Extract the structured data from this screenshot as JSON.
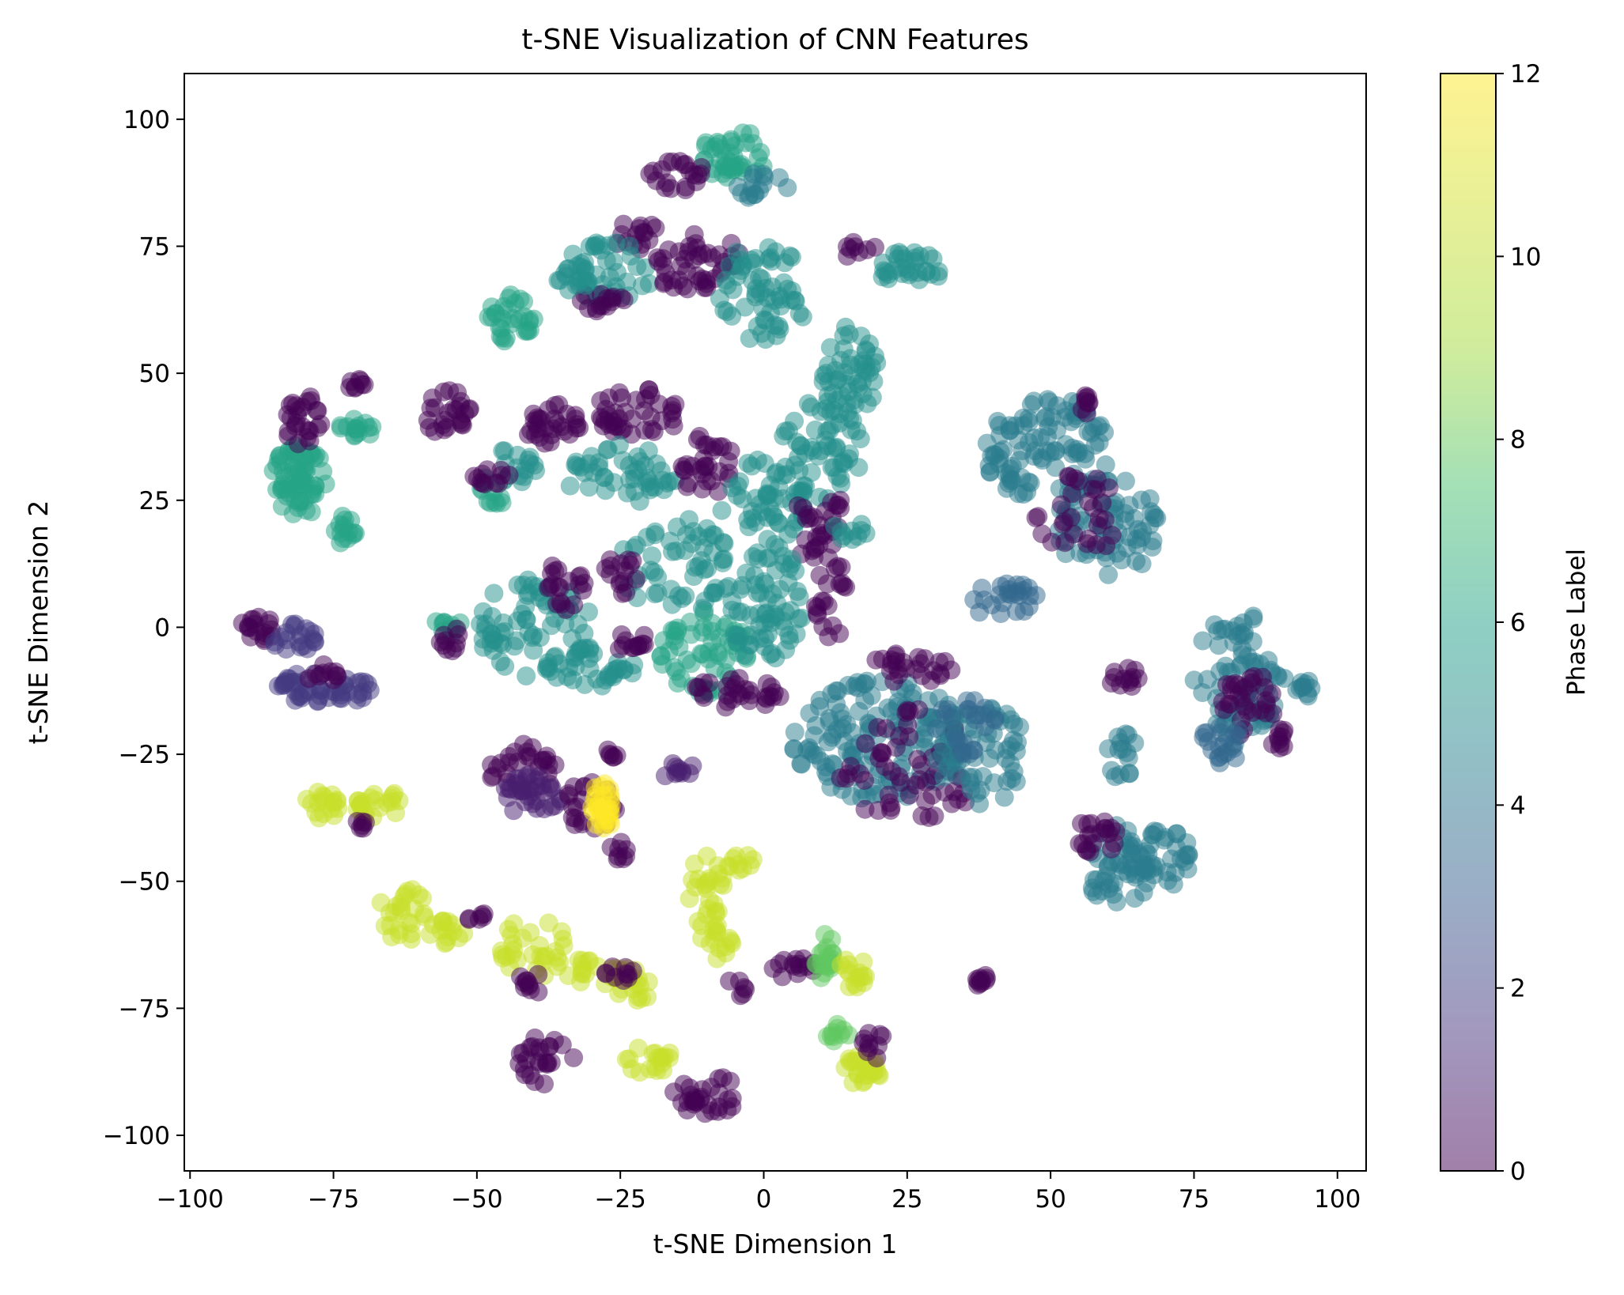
{
  "chart_data": {
    "type": "scatter",
    "title": "t-SNE Visualization of CNN Features",
    "xlabel": "t-SNE Dimension 1",
    "ylabel": "t-SNE Dimension 2",
    "xlim": [
      -101,
      105
    ],
    "ylim": [
      -107,
      109
    ],
    "xticks": [
      -100,
      -75,
      -50,
      -25,
      0,
      25,
      50,
      75,
      100
    ],
    "yticks": [
      -100,
      -75,
      -50,
      -25,
      0,
      25,
      50,
      75,
      100
    ],
    "xtick_labels": [
      "−100",
      "−75",
      "−50",
      "−25",
      "0",
      "25",
      "50",
      "75",
      "100"
    ],
    "ytick_labels": [
      "−100",
      "−75",
      "−50",
      "−25",
      "0",
      "25",
      "50",
      "75",
      "100"
    ],
    "grid": false,
    "colorbar": {
      "label": "Phase Label",
      "range": [
        0,
        12
      ],
      "ticks": [
        0,
        2,
        4,
        6,
        8,
        10,
        12
      ],
      "tick_labels": [
        "0",
        "2",
        "4",
        "6",
        "8",
        "10",
        "12"
      ],
      "colormap": "viridis"
    },
    "point_alpha": 0.5,
    "clusters": [
      {
        "label": 7,
        "cx": -5,
        "cy": 93,
        "rx": 6,
        "ry": 5,
        "n": 40
      },
      {
        "label": 0,
        "cx": -15,
        "cy": 89,
        "rx": 5,
        "ry": 3,
        "n": 20
      },
      {
        "label": 5,
        "cx": 0,
        "cy": 87,
        "rx": 5,
        "ry": 3,
        "n": 15
      },
      {
        "label": 0,
        "cx": -22,
        "cy": 77,
        "rx": 4,
        "ry": 3,
        "n": 15
      },
      {
        "label": 6,
        "cx": -27,
        "cy": 70,
        "rx": 8,
        "ry": 6,
        "n": 40
      },
      {
        "label": 0,
        "cx": -12,
        "cy": 72,
        "rx": 8,
        "ry": 6,
        "n": 45
      },
      {
        "label": 0,
        "cx": -28,
        "cy": 64,
        "rx": 4,
        "ry": 3,
        "n": 15
      },
      {
        "label": 6,
        "cx": 0,
        "cy": 66,
        "rx": 8,
        "ry": 10,
        "n": 60
      },
      {
        "label": 0,
        "cx": 17,
        "cy": 74,
        "rx": 3,
        "ry": 2,
        "n": 8
      },
      {
        "label": 6,
        "cx": 25,
        "cy": 71,
        "rx": 7,
        "ry": 3,
        "n": 30
      },
      {
        "label": 7,
        "cx": -44,
        "cy": 61,
        "rx": 4,
        "ry": 5,
        "n": 30
      },
      {
        "label": 6,
        "cx": -33,
        "cy": 69,
        "rx": 3,
        "ry": 3,
        "n": 15
      },
      {
        "label": 6,
        "cx": 15,
        "cy": 50,
        "rx": 5,
        "ry": 10,
        "n": 50
      },
      {
        "label": 6,
        "cx": 10,
        "cy": 35,
        "rx": 8,
        "ry": 10,
        "n": 55
      },
      {
        "label": 0,
        "cx": -37,
        "cy": 40,
        "rx": 5,
        "ry": 4,
        "n": 30
      },
      {
        "label": 0,
        "cx": -22,
        "cy": 42,
        "rx": 8,
        "ry": 5,
        "n": 40
      },
      {
        "label": 0,
        "cx": -55,
        "cy": 42,
        "rx": 4,
        "ry": 5,
        "n": 25
      },
      {
        "label": 6,
        "cx": -25,
        "cy": 30,
        "rx": 10,
        "ry": 6,
        "n": 45
      },
      {
        "label": 0,
        "cx": -10,
        "cy": 32,
        "rx": 5,
        "ry": 6,
        "n": 30
      },
      {
        "label": 6,
        "cx": 0,
        "cy": 25,
        "rx": 8,
        "ry": 8,
        "n": 50
      },
      {
        "label": 0,
        "cx": 10,
        "cy": 20,
        "rx": 5,
        "ry": 8,
        "n": 30
      },
      {
        "label": 7,
        "cx": -47,
        "cy": 27,
        "rx": 3,
        "ry": 3,
        "n": 12
      },
      {
        "label": 6,
        "cx": -43,
        "cy": 32,
        "rx": 4,
        "ry": 4,
        "n": 15
      },
      {
        "label": 0,
        "cx": -48,
        "cy": 30,
        "rx": 4,
        "ry": 2,
        "n": 12
      },
      {
        "label": 7,
        "cx": -81,
        "cy": 29,
        "rx": 5,
        "ry": 7,
        "n": 70
      },
      {
        "label": 0,
        "cx": -81,
        "cy": 41,
        "rx": 4,
        "ry": 5,
        "n": 25
      },
      {
        "label": 7,
        "cx": -71,
        "cy": 39,
        "rx": 3,
        "ry": 2,
        "n": 15
      },
      {
        "label": 0,
        "cx": -71,
        "cy": 48,
        "rx": 2,
        "ry": 1,
        "n": 8
      },
      {
        "label": 7,
        "cx": -73,
        "cy": 19,
        "rx": 2,
        "ry": 3,
        "n": 15
      },
      {
        "label": 6,
        "cx": -40,
        "cy": 0,
        "rx": 10,
        "ry": 10,
        "n": 70
      },
      {
        "label": 0,
        "cx": -35,
        "cy": 8,
        "rx": 4,
        "ry": 5,
        "n": 20
      },
      {
        "label": 6,
        "cx": -15,
        "cy": 12,
        "rx": 10,
        "ry": 10,
        "n": 55
      },
      {
        "label": 0,
        "cx": -25,
        "cy": 10,
        "rx": 3,
        "ry": 5,
        "n": 15
      },
      {
        "label": 7,
        "cx": -10,
        "cy": -5,
        "rx": 8,
        "ry": 8,
        "n": 60
      },
      {
        "label": 6,
        "cx": 0,
        "cy": 5,
        "rx": 7,
        "ry": 12,
        "n": 70
      },
      {
        "label": 0,
        "cx": -5,
        "cy": -13,
        "rx": 8,
        "ry": 3,
        "n": 30
      },
      {
        "label": 0,
        "cx": 12,
        "cy": 5,
        "rx": 3,
        "ry": 8,
        "n": 20
      },
      {
        "label": 6,
        "cx": -30,
        "cy": -8,
        "rx": 8,
        "ry": 4,
        "n": 30
      },
      {
        "label": 0,
        "cx": -23,
        "cy": -3,
        "rx": 3,
        "ry": 3,
        "n": 12
      },
      {
        "label": 7,
        "cx": -55,
        "cy": 0,
        "rx": 3,
        "ry": 2,
        "n": 10
      },
      {
        "label": 0,
        "cx": -55,
        "cy": -2,
        "rx": 2,
        "ry": 3,
        "n": 10
      },
      {
        "label": 0,
        "cx": -88,
        "cy": 0,
        "rx": 3,
        "ry": 3,
        "n": 18
      },
      {
        "label": 2,
        "cx": -82,
        "cy": -2,
        "rx": 4,
        "ry": 3,
        "n": 20
      },
      {
        "label": 2,
        "cx": -79,
        "cy": -12,
        "rx": 7,
        "ry": 3,
        "n": 35
      },
      {
        "label": 2,
        "cx": -72,
        "cy": -13,
        "rx": 4,
        "ry": 3,
        "n": 15
      },
      {
        "label": 0,
        "cx": -77,
        "cy": -9,
        "rx": 3,
        "ry": 2,
        "n": 10
      },
      {
        "label": 6,
        "cx": 15,
        "cy": 19,
        "rx": 3,
        "ry": 2,
        "n": 10
      },
      {
        "label": 5,
        "cx": 50,
        "cy": 35,
        "rx": 12,
        "ry": 10,
        "n": 100
      },
      {
        "label": 5,
        "cx": 60,
        "cy": 20,
        "rx": 9,
        "ry": 10,
        "n": 70
      },
      {
        "label": 0,
        "cx": 55,
        "cy": 22,
        "rx": 8,
        "ry": 8,
        "n": 30
      },
      {
        "label": 4,
        "cx": 42,
        "cy": 5,
        "rx": 6,
        "ry": 4,
        "n": 25
      },
      {
        "label": 0,
        "cx": 57,
        "cy": 44,
        "rx": 2,
        "ry": 2,
        "n": 8
      },
      {
        "label": 5,
        "cx": 20,
        "cy": -22,
        "rx": 15,
        "ry": 12,
        "n": 140
      },
      {
        "label": 0,
        "cx": 25,
        "cy": -28,
        "rx": 12,
        "ry": 12,
        "n": 60
      },
      {
        "label": 5,
        "cx": 38,
        "cy": -25,
        "rx": 8,
        "ry": 10,
        "n": 60
      },
      {
        "label": 0,
        "cx": 25,
        "cy": -8,
        "rx": 8,
        "ry": 3,
        "n": 25
      },
      {
        "label": 4,
        "cx": 35,
        "cy": -20,
        "rx": 6,
        "ry": 6,
        "n": 25
      },
      {
        "label": 5,
        "cx": 62,
        "cy": -47,
        "rx": 6,
        "ry": 8,
        "n": 50
      },
      {
        "label": 0,
        "cx": 58,
        "cy": -40,
        "rx": 4,
        "ry": 5,
        "n": 20
      },
      {
        "label": 5,
        "cx": 70,
        "cy": -45,
        "rx": 5,
        "ry": 6,
        "n": 30
      },
      {
        "label": 5,
        "cx": 62,
        "cy": -25,
        "rx": 3,
        "ry": 5,
        "n": 15
      },
      {
        "label": 0,
        "cx": 63,
        "cy": -10,
        "rx": 3,
        "ry": 2,
        "n": 12
      },
      {
        "label": 5,
        "cx": 83,
        "cy": -10,
        "rx": 8,
        "ry": 13,
        "n": 80
      },
      {
        "label": 0,
        "cx": 84,
        "cy": -15,
        "rx": 5,
        "ry": 7,
        "n": 30
      },
      {
        "label": 5,
        "cx": 94,
        "cy": -12,
        "rx": 2,
        "ry": 2,
        "n": 10
      },
      {
        "label": 4,
        "cx": 80,
        "cy": -23,
        "rx": 4,
        "ry": 4,
        "n": 20
      },
      {
        "label": 0,
        "cx": 90,
        "cy": -22,
        "rx": 2,
        "ry": 2,
        "n": 10
      },
      {
        "label": 0,
        "cx": -42,
        "cy": -28,
        "rx": 6,
        "ry": 5,
        "n": 30
      },
      {
        "label": 1,
        "cx": -40,
        "cy": -33,
        "rx": 6,
        "ry": 4,
        "n": 30
      },
      {
        "label": 0,
        "cx": -30,
        "cy": -35,
        "rx": 5,
        "ry": 5,
        "n": 25
      },
      {
        "label": 12,
        "cx": -28,
        "cy": -35,
        "rx": 2,
        "ry": 5,
        "n": 30
      },
      {
        "label": 0,
        "cx": -25,
        "cy": -44,
        "rx": 2,
        "ry": 2,
        "n": 8
      },
      {
        "label": 1,
        "cx": -15,
        "cy": -28,
        "rx": 3,
        "ry": 2,
        "n": 10
      },
      {
        "label": 0,
        "cx": -27,
        "cy": -25,
        "rx": 2,
        "ry": 1,
        "n": 6
      },
      {
        "label": 11,
        "cx": -77,
        "cy": -35,
        "rx": 3,
        "ry": 3,
        "n": 18
      },
      {
        "label": 11,
        "cx": -67,
        "cy": -35,
        "rx": 4,
        "ry": 3,
        "n": 22
      },
      {
        "label": 0,
        "cx": -71,
        "cy": -39,
        "rx": 2,
        "ry": 1,
        "n": 6
      },
      {
        "label": 11,
        "cx": -63,
        "cy": -56,
        "rx": 4,
        "ry": 6,
        "n": 25
      },
      {
        "label": 11,
        "cx": -55,
        "cy": -60,
        "rx": 4,
        "ry": 3,
        "n": 15
      },
      {
        "label": 11,
        "cx": -40,
        "cy": -63,
        "rx": 6,
        "ry": 6,
        "n": 30
      },
      {
        "label": 11,
        "cx": -30,
        "cy": -68,
        "rx": 5,
        "ry": 3,
        "n": 20
      },
      {
        "label": 11,
        "cx": -22,
        "cy": -70,
        "rx": 4,
        "ry": 4,
        "n": 18
      },
      {
        "label": 0,
        "cx": -50,
        "cy": -57,
        "rx": 2,
        "ry": 1,
        "n": 6
      },
      {
        "label": 0,
        "cx": -40,
        "cy": -70,
        "rx": 3,
        "ry": 2,
        "n": 10
      },
      {
        "label": 0,
        "cx": -25,
        "cy": -68,
        "rx": 3,
        "ry": 2,
        "n": 10
      },
      {
        "label": 11,
        "cx": -10,
        "cy": -52,
        "rx": 3,
        "ry": 8,
        "n": 25
      },
      {
        "label": 11,
        "cx": -8,
        "cy": -62,
        "rx": 3,
        "ry": 4,
        "n": 15
      },
      {
        "label": 11,
        "cx": -4,
        "cy": -46,
        "rx": 3,
        "ry": 2,
        "n": 10
      },
      {
        "label": 11,
        "cx": -20,
        "cy": -85,
        "rx": 4,
        "ry": 3,
        "n": 18
      },
      {
        "label": 0,
        "cx": -38,
        "cy": -85,
        "rx": 5,
        "ry": 5,
        "n": 25
      },
      {
        "label": 0,
        "cx": -10,
        "cy": -92,
        "rx": 6,
        "ry": 4,
        "n": 30
      },
      {
        "label": 0,
        "cx": -5,
        "cy": -71,
        "rx": 2,
        "ry": 2,
        "n": 6
      },
      {
        "label": 0,
        "cx": 5,
        "cy": -67,
        "rx": 5,
        "ry": 2,
        "n": 15
      },
      {
        "label": 9,
        "cx": 11,
        "cy": -65,
        "rx": 2,
        "ry": 5,
        "n": 20
      },
      {
        "label": 11,
        "cx": 16,
        "cy": -68,
        "rx": 3,
        "ry": 3,
        "n": 15
      },
      {
        "label": 9,
        "cx": 13,
        "cy": -80,
        "rx": 2,
        "ry": 2,
        "n": 10
      },
      {
        "label": 11,
        "cx": 17,
        "cy": -87,
        "rx": 4,
        "ry": 3,
        "n": 25
      },
      {
        "label": 0,
        "cx": 19,
        "cy": -82,
        "rx": 2,
        "ry": 3,
        "n": 10
      },
      {
        "label": 0,
        "cx": 38,
        "cy": -70,
        "rx": 1,
        "ry": 2,
        "n": 10
      }
    ]
  }
}
